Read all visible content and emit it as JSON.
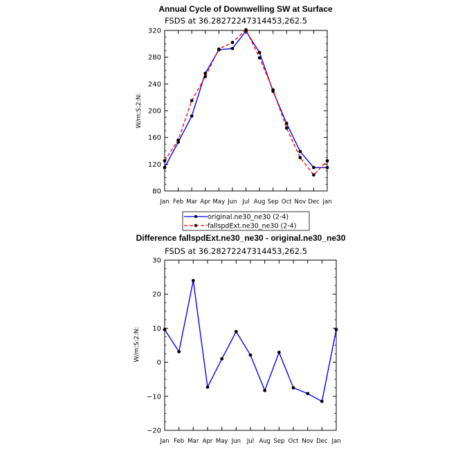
{
  "chart_data": [
    {
      "type": "line",
      "title": "Annual Cycle of Downwelling SW at Surface",
      "subtitle": "FSDS at 36.28272247314453,262.5",
      "ylabel": "W/m:S:2:N:",
      "xlabel": "",
      "categories": [
        "Jan",
        "Feb",
        "Mar",
        "Apr",
        "May",
        "Jun",
        "Jul",
        "Aug",
        "Sep",
        "Oct",
        "Nov",
        "Dec",
        "Jan"
      ],
      "ylim": [
        80,
        320
      ],
      "yticks": [
        80,
        120,
        160,
        200,
        240,
        280,
        320
      ],
      "legend_position": "bottom",
      "series": [
        {
          "name": "original.ne30_ne30 (2-4)",
          "color": "#0000ff",
          "style": "solid",
          "values": [
            115,
            153,
            192,
            256,
            291,
            293,
            319,
            287,
            229,
            181,
            139,
            115,
            115
          ]
        },
        {
          "name": "fallspdExt.ne30_ne30 (2-4)",
          "color": "#ff0000",
          "style": "dashed",
          "values": [
            125,
            156,
            215,
            251,
            292,
            302,
            321,
            279,
            231,
            174,
            130,
            104,
            125
          ]
        }
      ]
    },
    {
      "type": "line",
      "title": "Difference fallspdExt.ne30_ne30 - original.ne30_ne30",
      "subtitle": "FSDS at 36.28272247314453,262.5",
      "ylabel": "W/m:S:2:N:",
      "xlabel": "",
      "categories": [
        "Jan",
        "Feb",
        "Mar",
        "Apr",
        "May",
        "Jun",
        "Jul",
        "Aug",
        "Sep",
        "Oct",
        "Nov",
        "Dec",
        "Jan"
      ],
      "ylim": [
        -20,
        30
      ],
      "yticks": [
        -20,
        -10,
        0,
        10,
        20,
        30
      ],
      "series": [
        {
          "name": "",
          "color": "#0000ff",
          "style": "solid",
          "values": [
            9.6,
            3.1,
            24,
            -7.3,
            1,
            9,
            2.1,
            -8.3,
            2.9,
            -7.5,
            -9.2,
            -11.5,
            9.6
          ]
        }
      ]
    }
  ]
}
